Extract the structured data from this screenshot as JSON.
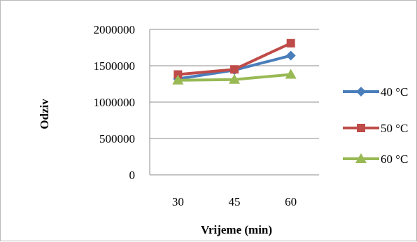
{
  "chart_data": {
    "type": "line",
    "title": "",
    "xlabel": "Vrijeme (min)",
    "ylabel": "Odziv",
    "categories": [
      "30",
      "45",
      "60"
    ],
    "y_ticks": [
      "0",
      "500000",
      "1000000",
      "1500000",
      "2000000"
    ],
    "ylim": [
      0,
      2000000
    ],
    "grid": "horizontal",
    "legend_position": "right",
    "series": [
      {
        "name": "40 °C",
        "color": "#4a7ebb",
        "marker": "diamond",
        "values": [
          1320000,
          1440000,
          1640000
        ]
      },
      {
        "name": "50 °C",
        "color": "#be4b48",
        "marker": "square",
        "values": [
          1380000,
          1450000,
          1810000
        ]
      },
      {
        "name": "60 °C",
        "color": "#98b954",
        "marker": "triangle",
        "values": [
          1300000,
          1310000,
          1380000
        ]
      }
    ]
  }
}
